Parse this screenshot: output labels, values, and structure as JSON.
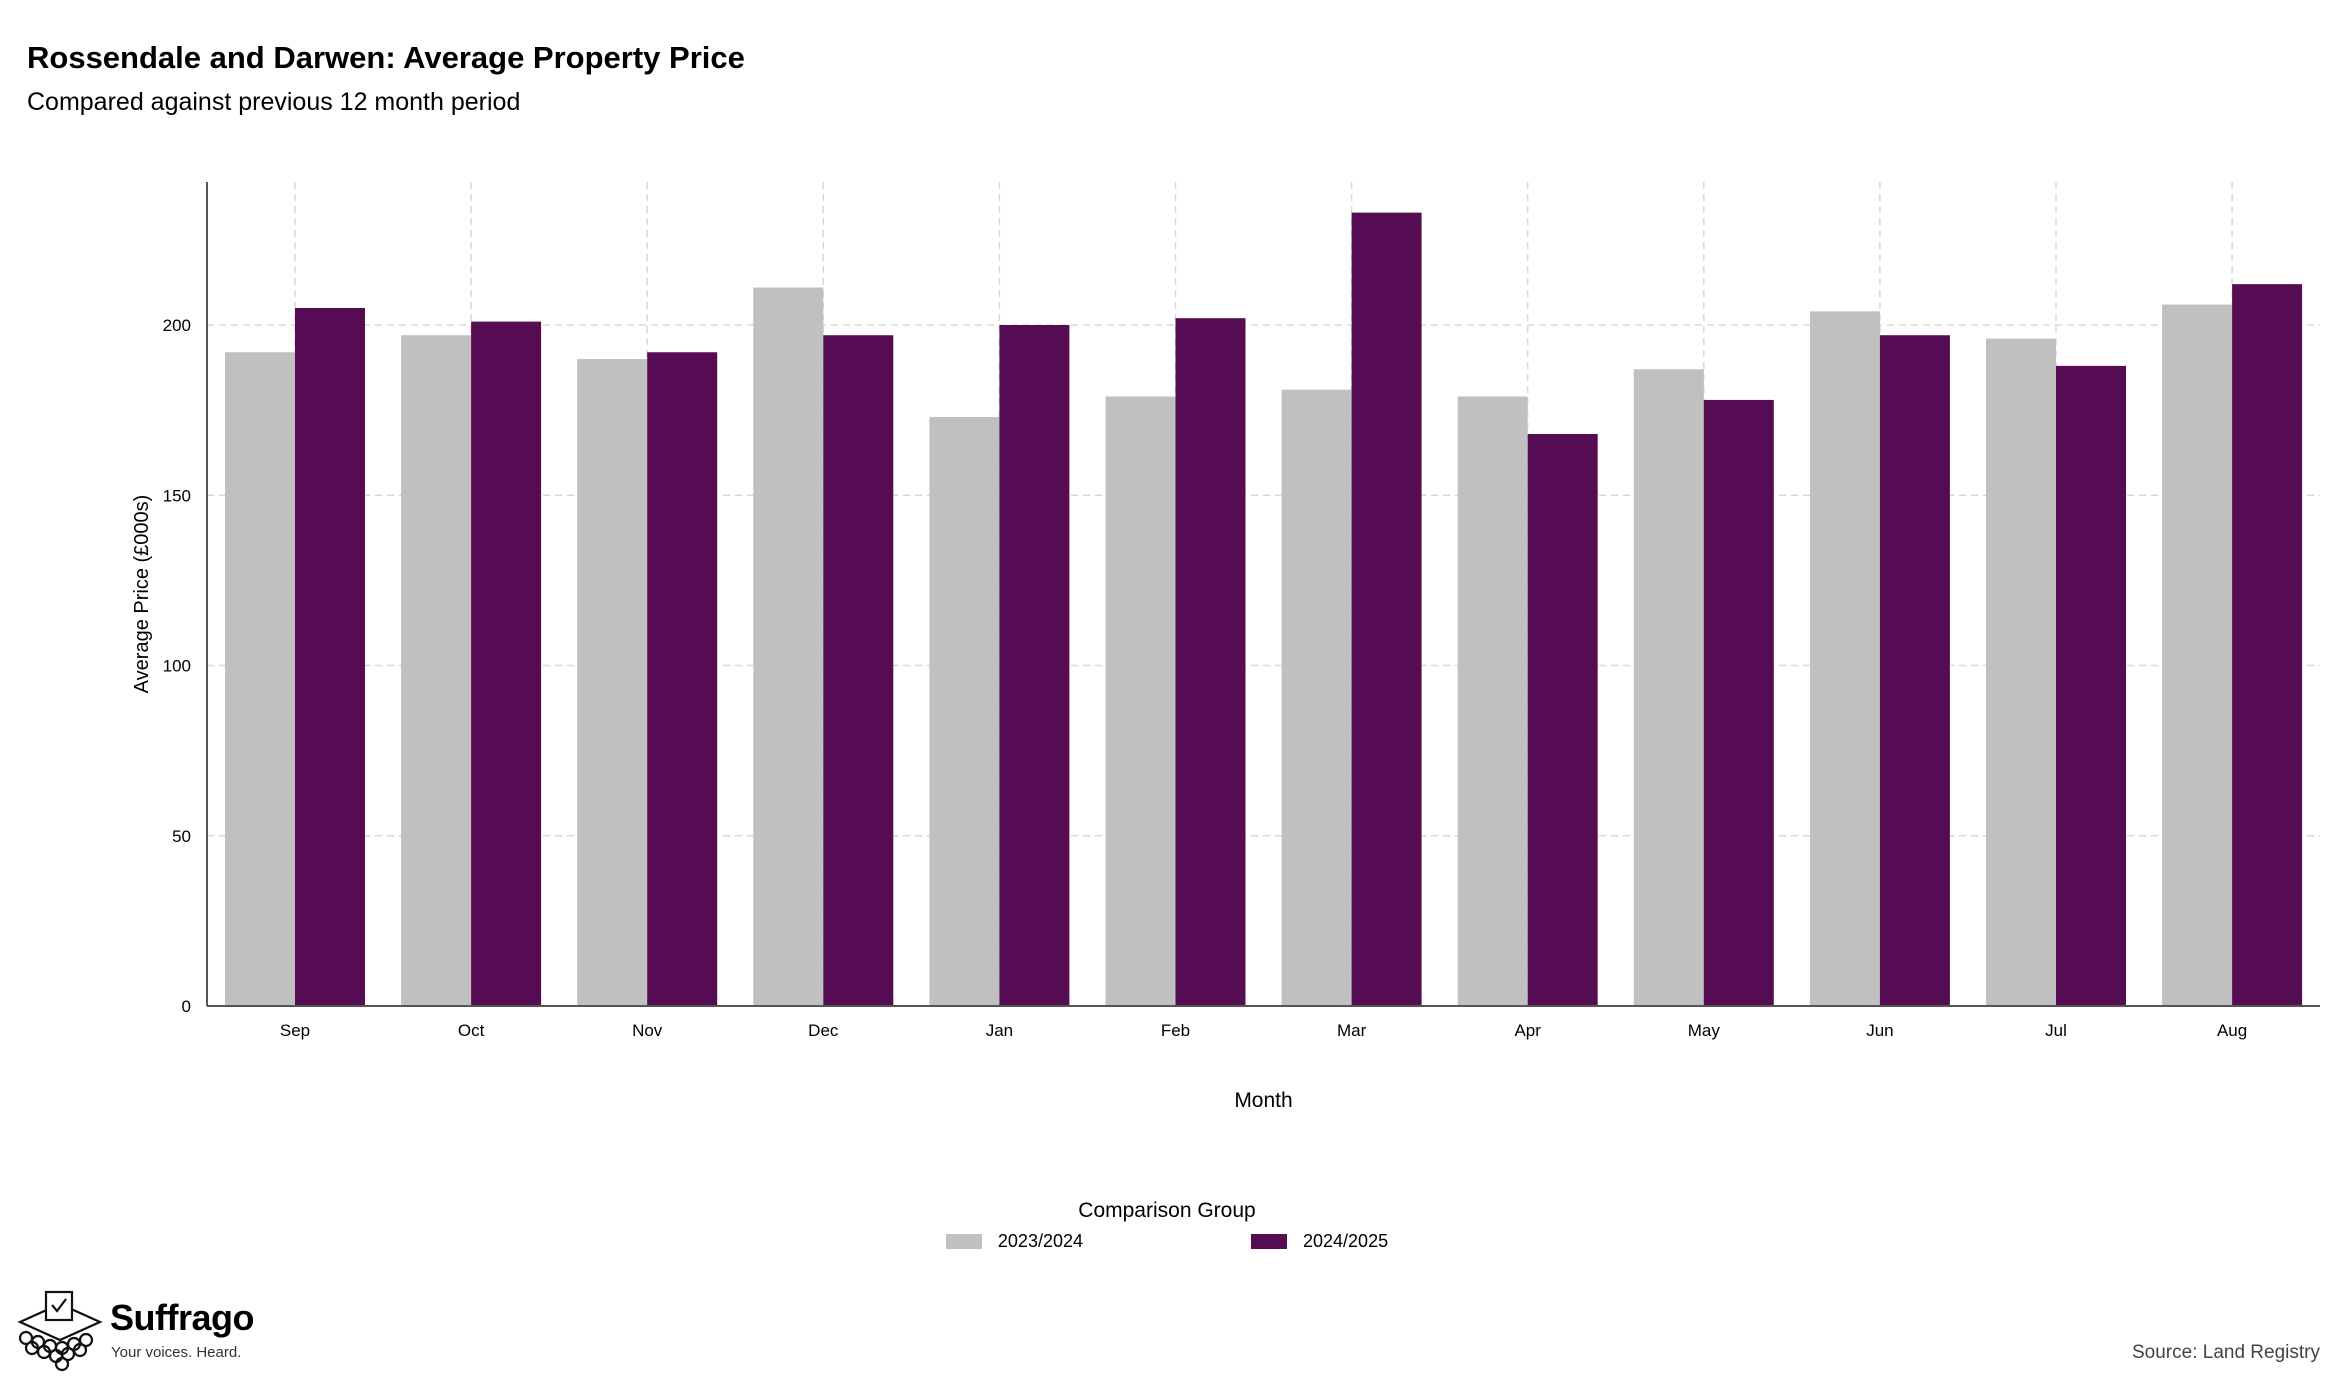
{
  "title": "Rossendale and Darwen: Average Property Price",
  "subtitle": "Compared against previous 12 month period",
  "legend_title": "Comparison Group",
  "brand": {
    "name": "Suffrago",
    "tagline": "Your voices. Heard."
  },
  "source": "Source: Land Registry",
  "colors": {
    "series1": "#c0c0c0",
    "series2": "#560c52",
    "grid": "#d9d9d9",
    "axis": "#555555"
  },
  "chart_data": {
    "type": "bar",
    "xlabel": "Month",
    "ylabel": "Average Price (£000s)",
    "ylim": [
      0,
      242
    ],
    "yticks": [
      0,
      50,
      100,
      150,
      200
    ],
    "grid": true,
    "legend_position": "bottom",
    "categories": [
      "Sep",
      "Oct",
      "Nov",
      "Dec",
      "Jan",
      "Feb",
      "Mar",
      "Apr",
      "May",
      "Jun",
      "Jul",
      "Aug"
    ],
    "series": [
      {
        "name": "2023/2024",
        "color": "#c0c0c0",
        "values": [
          192,
          197,
          190,
          211,
          173,
          179,
          181,
          179,
          187,
          204,
          196,
          206
        ]
      },
      {
        "name": "2024/2025",
        "color": "#560c52",
        "values": [
          205,
          201,
          192,
          197,
          200,
          202,
          233,
          168,
          178,
          197,
          188,
          212
        ]
      }
    ]
  }
}
